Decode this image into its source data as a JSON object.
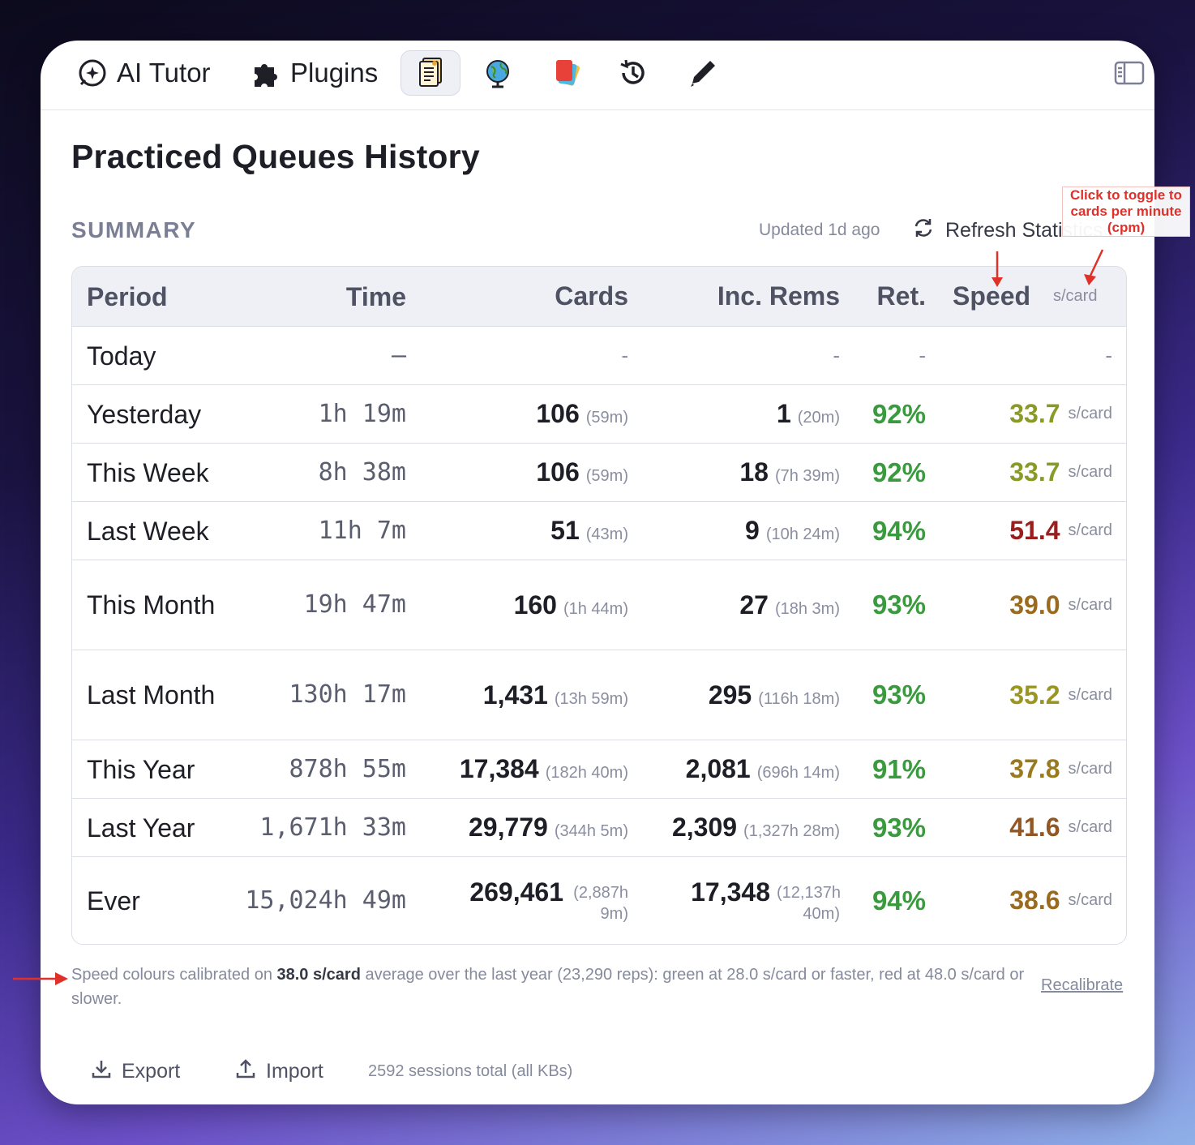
{
  "toolbar": {
    "ai_tutor": "AI Tutor",
    "plugins": "Plugins"
  },
  "page": {
    "title": "Practiced Queues History",
    "summary_label": "SUMMARY",
    "updated": "Updated 1d ago",
    "refresh": "Refresh Statistics"
  },
  "annotation": {
    "note": "Click to toggle to cards per minute (cpm)"
  },
  "table": {
    "headers": {
      "period": "Period",
      "time": "Time",
      "cards": "Cards",
      "inc": "Inc. Rems",
      "ret": "Ret.",
      "speed": "Speed",
      "speed_unit": "s/card"
    },
    "rows": [
      {
        "period": "Today",
        "time": "–",
        "cards": "",
        "cards_sub": "",
        "inc": "",
        "inc_sub": "",
        "ret": "",
        "speed": "",
        "speed_unit": "",
        "dash": "-"
      },
      {
        "period": "Yesterday",
        "time": "1h 19m",
        "cards": "106",
        "cards_sub": "(59m)",
        "inc": "1",
        "inc_sub": "(20m)",
        "ret": "92%",
        "speed": "33.7",
        "speed_unit": "s/card",
        "speed_color": "#8a9a26"
      },
      {
        "period": "This Week",
        "time": "8h 38m",
        "cards": "106",
        "cards_sub": "(59m)",
        "inc": "18",
        "inc_sub": "(7h 39m)",
        "ret": "92%",
        "speed": "33.7",
        "speed_unit": "s/card",
        "speed_color": "#8a9a26"
      },
      {
        "period": "Last Week",
        "time": "11h 7m",
        "cards": "51",
        "cards_sub": "(43m)",
        "inc": "9",
        "inc_sub": "(10h 24m)",
        "ret": "94%",
        "speed": "51.4",
        "speed_unit": "s/card",
        "speed_color": "#9b1d1d"
      },
      {
        "period": "This Month",
        "time": "19h 47m",
        "cards": "160",
        "cards_sub": "(1h 44m)",
        "inc": "27",
        "inc_sub": "(18h 3m)",
        "ret": "93%",
        "speed": "39.0",
        "speed_unit": "s/card",
        "speed_color": "#9a6a1e"
      },
      {
        "period": "Last Month",
        "time": "130h 17m",
        "cards": "1,431",
        "cards_sub": "(13h 59m)",
        "inc": "295",
        "inc_sub": "(116h 18m)",
        "ret": "93%",
        "speed": "35.2",
        "speed_unit": "s/card",
        "speed_color": "#9a9624"
      },
      {
        "period": "This Year",
        "time": "878h 55m",
        "cards": "17,384",
        "cards_sub": "(182h 40m)",
        "inc": "2,081",
        "inc_sub": "(696h 14m)",
        "ret": "91%",
        "speed": "37.8",
        "speed_unit": "s/card",
        "speed_color": "#9a7a1f"
      },
      {
        "period": "Last Year",
        "time": "1,671h 33m",
        "cards": "29,779",
        "cards_sub": "(344h 5m)",
        "inc": "2,309",
        "inc_sub": "(1,327h 28m)",
        "ret": "93%",
        "speed": "41.6",
        "speed_unit": "s/card",
        "speed_color": "#925722"
      },
      {
        "period": "Ever",
        "time": "15,024h 49m",
        "cards": "269,461",
        "cards_sub": "(2,887h 9m)",
        "inc": "17,348",
        "inc_sub": "(12,137h 40m)",
        "ret": "94%",
        "speed": "38.6",
        "speed_unit": "s/card",
        "speed_color": "#9a6a1e"
      }
    ]
  },
  "footnote": {
    "pre": "Speed colours calibrated on ",
    "bold": "38.0 s/card",
    "post": " average over the last year (23,290 reps): green at 28.0 s/card or faster, red at 48.0 s/card or slower.",
    "recalibrate": "Recalibrate"
  },
  "bottom": {
    "export": "Export",
    "import": "Import",
    "sessions": "2592 sessions total (all KBs)"
  },
  "colors": {
    "green": "#3a9a3e",
    "annotation_red": "#e0302a"
  }
}
